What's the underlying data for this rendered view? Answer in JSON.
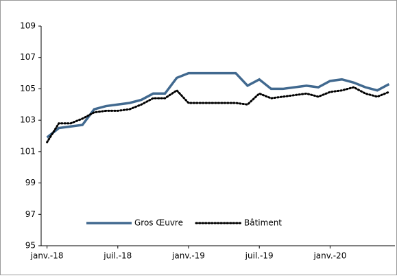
{
  "chart_data": {
    "type": "line",
    "categories": [
      "janv.-18",
      null,
      null,
      null,
      null,
      null,
      "juil.-18",
      null,
      null,
      null,
      null,
      null,
      "janv.-19",
      null,
      null,
      null,
      null,
      null,
      "juil.-19",
      null,
      null,
      null,
      null,
      null,
      "janv.-20",
      null,
      null,
      null,
      null,
      null
    ],
    "series": [
      {
        "name": "Gros Œuvre",
        "color": "#41698f",
        "style": "solid",
        "values": [
          101.9,
          102.5,
          102.6,
          102.7,
          103.7,
          103.9,
          104.0,
          104.1,
          104.3,
          104.7,
          104.7,
          105.7,
          106.0,
          106.0,
          106.0,
          106.0,
          106.0,
          105.2,
          105.6,
          105.0,
          105.0,
          105.1,
          105.2,
          105.1,
          105.5,
          105.6,
          105.4,
          105.1,
          104.9,
          105.3
        ]
      },
      {
        "name": "Bâtiment",
        "color": "#000000",
        "style": "dotted",
        "values": [
          101.6,
          102.8,
          102.8,
          103.1,
          103.5,
          103.6,
          103.6,
          103.7,
          104.0,
          104.4,
          104.4,
          104.9,
          104.1,
          104.1,
          104.1,
          104.1,
          104.1,
          104.0,
          104.7,
          104.4,
          104.5,
          104.6,
          104.7,
          104.5,
          104.8,
          104.9,
          105.1,
          104.7,
          104.5,
          104.8
        ]
      }
    ],
    "ylim": [
      95,
      109
    ],
    "yticks": [
      95,
      97,
      99,
      101,
      103,
      105,
      107,
      109
    ]
  }
}
